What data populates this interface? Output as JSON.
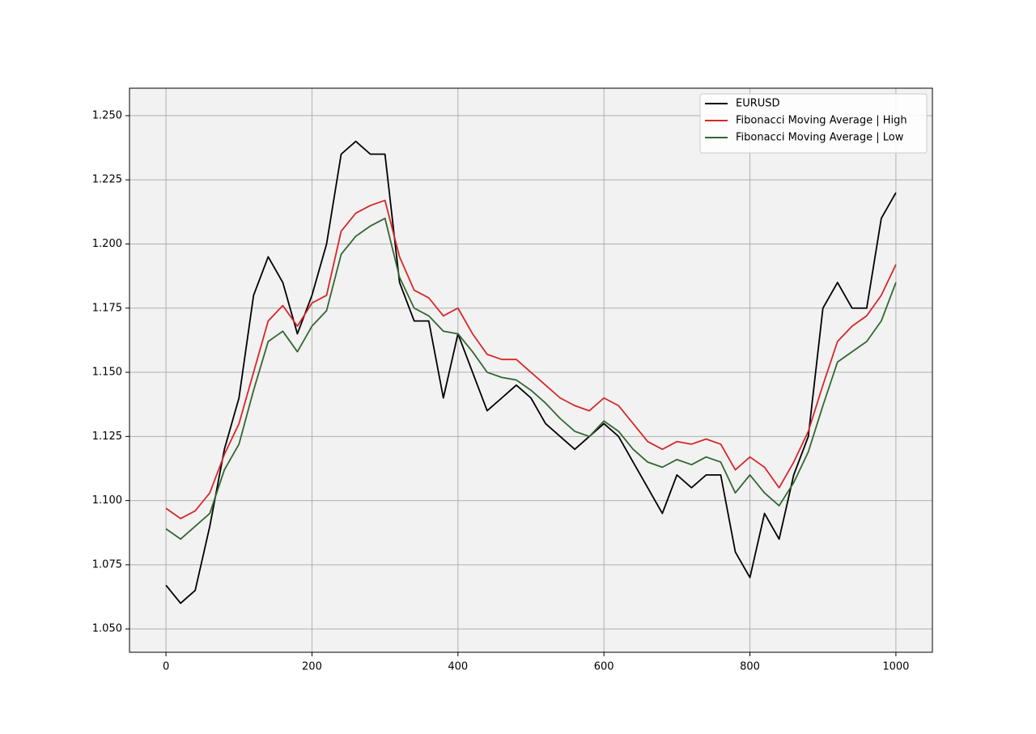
{
  "chart_data": {
    "type": "line",
    "x": [
      0,
      20,
      40,
      60,
      80,
      100,
      120,
      140,
      160,
      180,
      200,
      220,
      240,
      260,
      280,
      300,
      320,
      340,
      360,
      380,
      400,
      420,
      440,
      460,
      480,
      500,
      520,
      540,
      560,
      580,
      600,
      620,
      640,
      660,
      680,
      700,
      720,
      740,
      760,
      780,
      800,
      820,
      840,
      860,
      880,
      900,
      920,
      940,
      960,
      980,
      1000
    ],
    "series": [
      {
        "name": "EURUSD",
        "color": "#000000",
        "values": [
          1.067,
          1.06,
          1.065,
          1.09,
          1.12,
          1.14,
          1.18,
          1.195,
          1.185,
          1.165,
          1.18,
          1.2,
          1.235,
          1.24,
          1.235,
          1.235,
          1.185,
          1.17,
          1.17,
          1.14,
          1.165,
          1.15,
          1.135,
          1.14,
          1.145,
          1.14,
          1.13,
          1.125,
          1.12,
          1.125,
          1.13,
          1.125,
          1.115,
          1.105,
          1.095,
          1.11,
          1.105,
          1.11,
          1.11,
          1.08,
          1.07,
          1.095,
          1.085,
          1.11,
          1.125,
          1.175,
          1.185,
          1.175,
          1.175,
          1.21,
          1.22
        ]
      },
      {
        "name": "Fibonacci Moving Average | High",
        "color": "#d62728",
        "values": [
          1.097,
          1.093,
          1.096,
          1.103,
          1.118,
          1.13,
          1.15,
          1.17,
          1.176,
          1.168,
          1.177,
          1.18,
          1.205,
          1.212,
          1.215,
          1.217,
          1.195,
          1.182,
          1.179,
          1.172,
          1.175,
          1.165,
          1.157,
          1.155,
          1.155,
          1.15,
          1.145,
          1.14,
          1.137,
          1.135,
          1.14,
          1.137,
          1.13,
          1.123,
          1.12,
          1.123,
          1.122,
          1.124,
          1.122,
          1.112,
          1.117,
          1.113,
          1.105,
          1.115,
          1.127,
          1.145,
          1.162,
          1.168,
          1.172,
          1.18,
          1.192
        ]
      },
      {
        "name": "Fibonacci Moving Average | Low",
        "color": "#336633",
        "values": [
          1.089,
          1.085,
          1.09,
          1.095,
          1.112,
          1.122,
          1.143,
          1.162,
          1.166,
          1.158,
          1.168,
          1.174,
          1.196,
          1.203,
          1.207,
          1.21,
          1.187,
          1.175,
          1.172,
          1.166,
          1.165,
          1.158,
          1.15,
          1.148,
          1.147,
          1.143,
          1.138,
          1.132,
          1.127,
          1.125,
          1.131,
          1.127,
          1.12,
          1.115,
          1.113,
          1.116,
          1.114,
          1.117,
          1.115,
          1.103,
          1.11,
          1.103,
          1.098,
          1.107,
          1.119,
          1.137,
          1.154,
          1.158,
          1.162,
          1.17,
          1.185
        ]
      }
    ],
    "xlim": [
      -50,
      1050
    ],
    "xticks": [
      0,
      200,
      400,
      600,
      800,
      1000
    ],
    "ylim": [
      1.0409,
      1.2607
    ],
    "yticks": [
      {
        "value": 1.05,
        "label": "1.050"
      },
      {
        "value": 1.075,
        "label": "1.075"
      },
      {
        "value": 1.1,
        "label": "1.100"
      },
      {
        "value": 1.125,
        "label": "1.125"
      },
      {
        "value": 1.15,
        "label": "1.150"
      },
      {
        "value": 1.175,
        "label": "1.175"
      },
      {
        "value": 1.2,
        "label": "1.200"
      },
      {
        "value": 1.225,
        "label": "1.225"
      },
      {
        "value": 1.25,
        "label": "1.250"
      }
    ],
    "grid": true,
    "legend": "upper right"
  }
}
